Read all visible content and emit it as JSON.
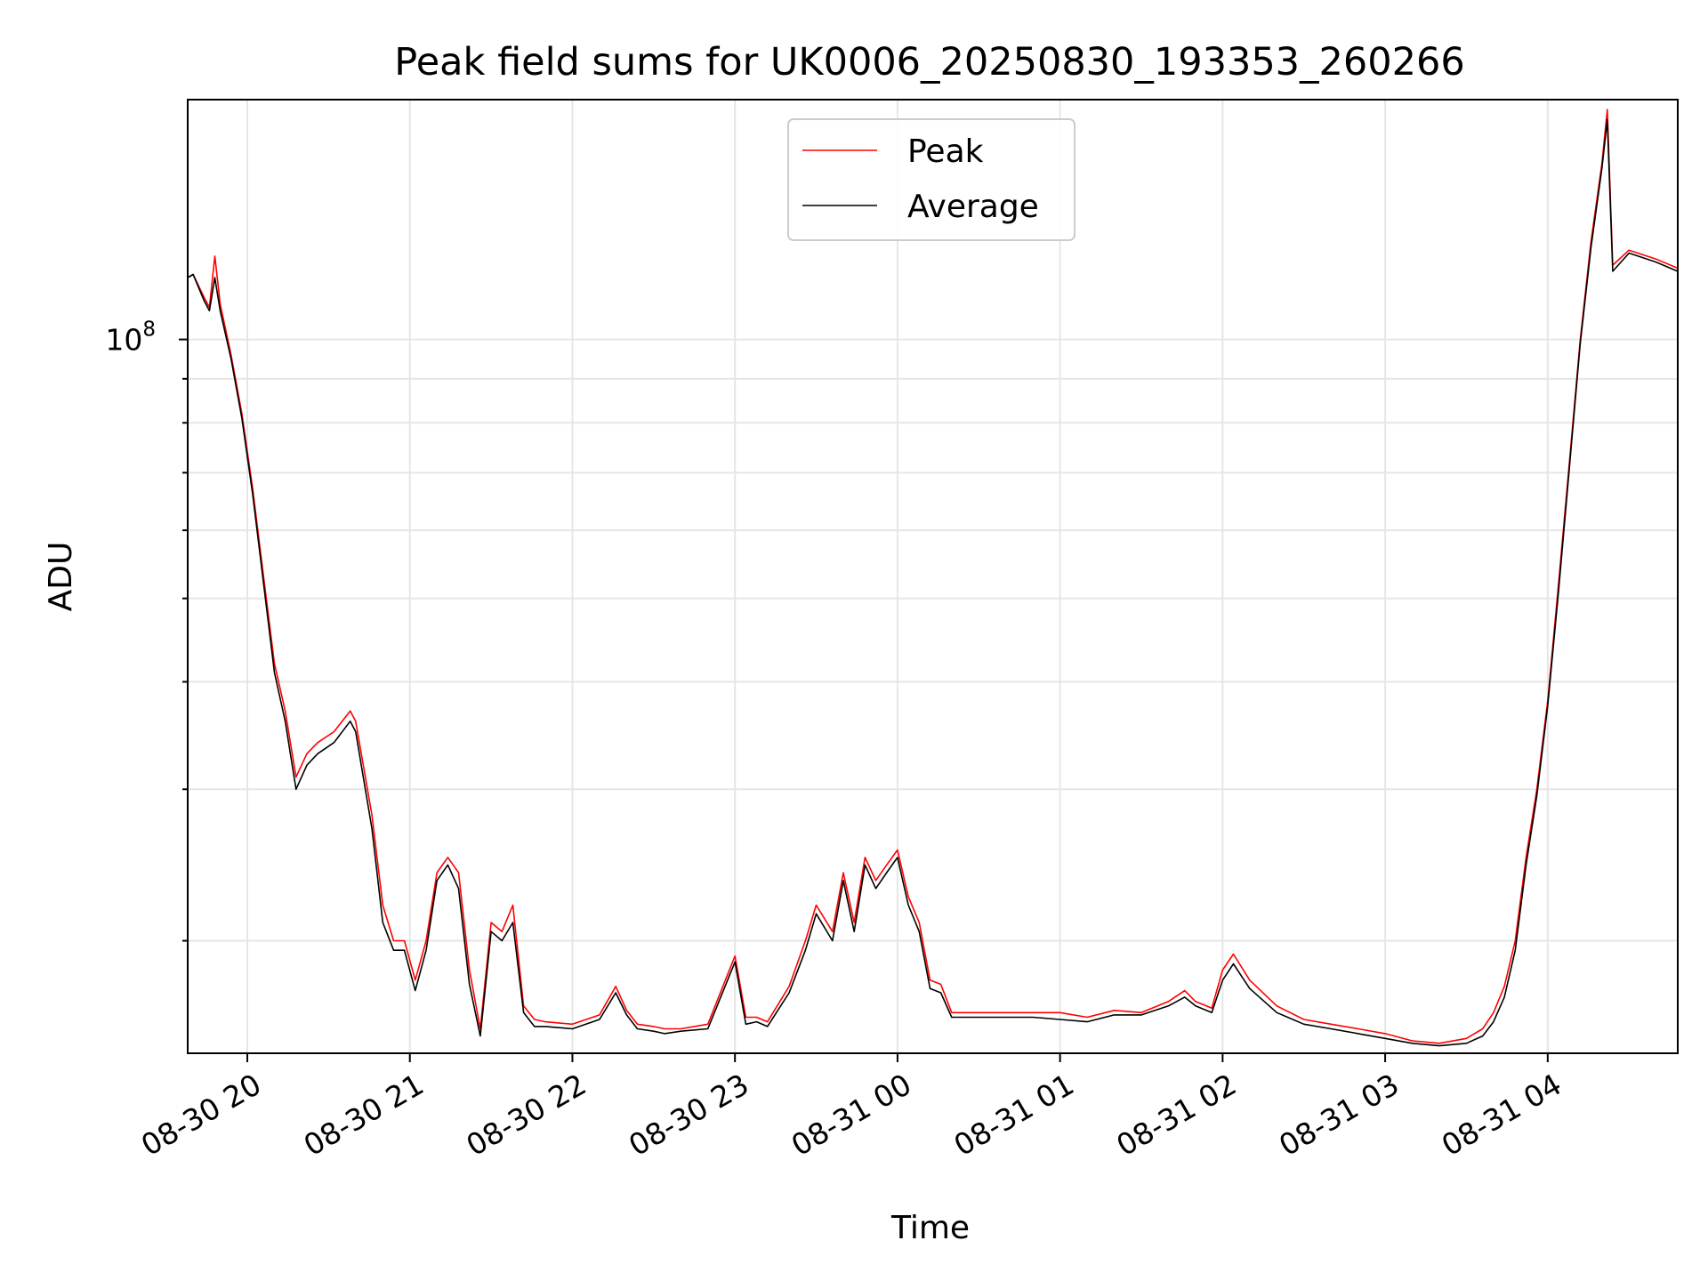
{
  "chart_data": {
    "type": "line",
    "title": "Peak field sums for UK0006_20250830_193353_260266",
    "xlabel": "Time",
    "ylabel": "ADU",
    "x_tick_labels": [
      "08-30 20",
      "08-30 21",
      "08-30 22",
      "08-30 23",
      "08-31 00",
      "08-31 01",
      "08-31 02",
      "08-31 03",
      "08-31 04"
    ],
    "y_tick_labels": [
      {
        "base": "10",
        "exp": "8"
      }
    ],
    "y_scale": "log",
    "grid": true,
    "legend_location": "upper center",
    "xlim": [
      "2025-08-30 19:38",
      "2025-08-31 04:48"
    ],
    "ylim": [
      14800000,
      190000000
    ],
    "series": [
      {
        "name": "Peak",
        "color": "#ff0000",
        "x": [
          "2025-08-30 19:38",
          "2025-08-30 19:40",
          "2025-08-30 19:44",
          "2025-08-30 19:46",
          "2025-08-30 19:48",
          "2025-08-30 19:50",
          "2025-08-30 19:54",
          "2025-08-30 19:58",
          "2025-08-30 20:02",
          "2025-08-30 20:06",
          "2025-08-30 20:10",
          "2025-08-30 20:14",
          "2025-08-30 20:18",
          "2025-08-30 20:22",
          "2025-08-30 20:26",
          "2025-08-30 20:32",
          "2025-08-30 20:38",
          "2025-08-30 20:40",
          "2025-08-30 20:46",
          "2025-08-30 20:50",
          "2025-08-30 20:54",
          "2025-08-30 20:58",
          "2025-08-30 21:02",
          "2025-08-30 21:06",
          "2025-08-30 21:10",
          "2025-08-30 21:14",
          "2025-08-30 21:18",
          "2025-08-30 21:22",
          "2025-08-30 21:26",
          "2025-08-30 21:30",
          "2025-08-30 21:34",
          "2025-08-30 21:38",
          "2025-08-30 21:42",
          "2025-08-30 21:46",
          "2025-08-30 21:50",
          "2025-08-30 22:00",
          "2025-08-30 22:10",
          "2025-08-30 22:16",
          "2025-08-30 22:20",
          "2025-08-30 22:24",
          "2025-08-30 22:30",
          "2025-08-30 22:34",
          "2025-08-30 22:40",
          "2025-08-30 22:50",
          "2025-08-30 23:00",
          "2025-08-30 23:04",
          "2025-08-30 23:08",
          "2025-08-30 23:12",
          "2025-08-30 23:20",
          "2025-08-30 23:26",
          "2025-08-30 23:30",
          "2025-08-30 23:36",
          "2025-08-30 23:40",
          "2025-08-30 23:44",
          "2025-08-30 23:48",
          "2025-08-30 23:52",
          "2025-08-30 23:56",
          "2025-08-31 00:00",
          "2025-08-31 00:04",
          "2025-08-31 00:08",
          "2025-08-31 00:12",
          "2025-08-31 00:16",
          "2025-08-31 00:20",
          "2025-08-31 00:24",
          "2025-08-31 00:28",
          "2025-08-31 00:32",
          "2025-08-31 00:40",
          "2025-08-31 00:50",
          "2025-08-31 01:00",
          "2025-08-31 01:10",
          "2025-08-31 01:20",
          "2025-08-31 01:30",
          "2025-08-31 01:40",
          "2025-08-31 01:46",
          "2025-08-31 01:50",
          "2025-08-31 01:56",
          "2025-08-31 02:00",
          "2025-08-31 02:04",
          "2025-08-31 02:10",
          "2025-08-31 02:20",
          "2025-08-31 02:30",
          "2025-08-31 02:40",
          "2025-08-31 02:50",
          "2025-08-31 03:00",
          "2025-08-31 03:10",
          "2025-08-31 03:20",
          "2025-08-31 03:30",
          "2025-08-31 03:36",
          "2025-08-31 03:40",
          "2025-08-31 03:44",
          "2025-08-31 03:48",
          "2025-08-31 03:52",
          "2025-08-31 03:56",
          "2025-08-31 04:00",
          "2025-08-31 04:04",
          "2025-08-31 04:08",
          "2025-08-31 04:12",
          "2025-08-31 04:16",
          "2025-08-31 04:20",
          "2025-08-31 04:22",
          "2025-08-31 04:24",
          "2025-08-31 04:30",
          "2025-08-31 04:40",
          "2025-08-31 04:48"
        ],
        "values": [
          118000000,
          119000000,
          112000000,
          109000000,
          125000000,
          110000000,
          96000000,
          82000000,
          67000000,
          53000000,
          42000000,
          37000000,
          31000000,
          33000000,
          34000000,
          35000000,
          37000000,
          36000000,
          28000000,
          22000000,
          20000000,
          20000000,
          18000000,
          20000000,
          24000000,
          25000000,
          24000000,
          18500000,
          15800000,
          21000000,
          20500000,
          22000000,
          16800000,
          16200000,
          16100000,
          16000000,
          16400000,
          17700000,
          16600000,
          16000000,
          15900000,
          15800000,
          15800000,
          16000000,
          19200000,
          16300000,
          16300000,
          16100000,
          17700000,
          20000000,
          22000000,
          20500000,
          24000000,
          21000000,
          25000000,
          23500000,
          24500000,
          25500000,
          22500000,
          21000000,
          18000000,
          17800000,
          16500000,
          16500000,
          16500000,
          16500000,
          16500000,
          16500000,
          16500000,
          16300000,
          16600000,
          16500000,
          17000000,
          17500000,
          17000000,
          16700000,
          18500000,
          19300000,
          18000000,
          16800000,
          16200000,
          16000000,
          15800000,
          15600000,
          15300000,
          15200000,
          15400000,
          15800000,
          16500000,
          17700000,
          20000000,
          25000000,
          30000000,
          38000000,
          52000000,
          72000000,
          100000000,
          130000000,
          160000000,
          185000000,
          122000000,
          127000000,
          124000000,
          121000000
        ]
      },
      {
        "name": "Average",
        "color": "#000000",
        "x": [
          "2025-08-30 19:38",
          "2025-08-30 19:40",
          "2025-08-30 19:44",
          "2025-08-30 19:46",
          "2025-08-30 19:48",
          "2025-08-30 19:50",
          "2025-08-30 19:54",
          "2025-08-30 19:58",
          "2025-08-30 20:02",
          "2025-08-30 20:06",
          "2025-08-30 20:10",
          "2025-08-30 20:14",
          "2025-08-30 20:18",
          "2025-08-30 20:22",
          "2025-08-30 20:26",
          "2025-08-30 20:32",
          "2025-08-30 20:38",
          "2025-08-30 20:40",
          "2025-08-30 20:46",
          "2025-08-30 20:50",
          "2025-08-30 20:54",
          "2025-08-30 20:58",
          "2025-08-30 21:02",
          "2025-08-30 21:06",
          "2025-08-30 21:10",
          "2025-08-30 21:14",
          "2025-08-30 21:18",
          "2025-08-30 21:22",
          "2025-08-30 21:26",
          "2025-08-30 21:30",
          "2025-08-30 21:34",
          "2025-08-30 21:38",
          "2025-08-30 21:42",
          "2025-08-30 21:46",
          "2025-08-30 21:50",
          "2025-08-30 22:00",
          "2025-08-30 22:10",
          "2025-08-30 22:16",
          "2025-08-30 22:20",
          "2025-08-30 22:24",
          "2025-08-30 22:30",
          "2025-08-30 22:34",
          "2025-08-30 22:40",
          "2025-08-30 22:50",
          "2025-08-30 23:00",
          "2025-08-30 23:04",
          "2025-08-30 23:08",
          "2025-08-30 23:12",
          "2025-08-30 23:20",
          "2025-08-30 23:26",
          "2025-08-30 23:30",
          "2025-08-30 23:36",
          "2025-08-30 23:40",
          "2025-08-30 23:44",
          "2025-08-30 23:48",
          "2025-08-30 23:52",
          "2025-08-30 23:56",
          "2025-08-31 00:00",
          "2025-08-31 00:04",
          "2025-08-31 00:08",
          "2025-08-31 00:12",
          "2025-08-31 00:16",
          "2025-08-31 00:20",
          "2025-08-31 00:24",
          "2025-08-31 00:28",
          "2025-08-31 00:32",
          "2025-08-31 00:40",
          "2025-08-31 00:50",
          "2025-08-31 01:00",
          "2025-08-31 01:10",
          "2025-08-31 01:20",
          "2025-08-31 01:30",
          "2025-08-31 01:40",
          "2025-08-31 01:46",
          "2025-08-31 01:50",
          "2025-08-31 01:56",
          "2025-08-31 02:00",
          "2025-08-31 02:04",
          "2025-08-31 02:10",
          "2025-08-31 02:20",
          "2025-08-31 02:30",
          "2025-08-31 02:40",
          "2025-08-31 02:50",
          "2025-08-31 03:00",
          "2025-08-31 03:10",
          "2025-08-31 03:20",
          "2025-08-31 03:30",
          "2025-08-31 03:36",
          "2025-08-31 03:40",
          "2025-08-31 03:44",
          "2025-08-31 03:48",
          "2025-08-31 03:52",
          "2025-08-31 03:56",
          "2025-08-31 04:00",
          "2025-08-31 04:04",
          "2025-08-31 04:08",
          "2025-08-31 04:12",
          "2025-08-31 04:16",
          "2025-08-31 04:20",
          "2025-08-31 04:22",
          "2025-08-31 04:24",
          "2025-08-31 04:30",
          "2025-08-31 04:40",
          "2025-08-31 04:48"
        ],
        "values": [
          118000000,
          119000000,
          111000000,
          108000000,
          118000000,
          108000000,
          95000000,
          81000000,
          66000000,
          52000000,
          41000000,
          36000000,
          30000000,
          32000000,
          33000000,
          34000000,
          36000000,
          35000000,
          27000000,
          21000000,
          19500000,
          19500000,
          17500000,
          19500000,
          23500000,
          24500000,
          23000000,
          17800000,
          15500000,
          20500000,
          20000000,
          21000000,
          16500000,
          15900000,
          15900000,
          15800000,
          16200000,
          17400000,
          16400000,
          15800000,
          15700000,
          15600000,
          15700000,
          15800000,
          18900000,
          16000000,
          16100000,
          15900000,
          17400000,
          19500000,
          21500000,
          20000000,
          23500000,
          20500000,
          24500000,
          23000000,
          24000000,
          25000000,
          22000000,
          20500000,
          17600000,
          17400000,
          16300000,
          16300000,
          16300000,
          16300000,
          16300000,
          16300000,
          16200000,
          16100000,
          16400000,
          16400000,
          16800000,
          17200000,
          16800000,
          16500000,
          18000000,
          18800000,
          17600000,
          16500000,
          16000000,
          15800000,
          15600000,
          15400000,
          15200000,
          15100000,
          15200000,
          15500000,
          16100000,
          17200000,
          19500000,
          24500000,
          29500000,
          37500000,
          51000000,
          71000000,
          99000000,
          128000000,
          158000000,
          180000000,
          120000000,
          126000000,
          123000000,
          120000000
        ]
      }
    ]
  }
}
